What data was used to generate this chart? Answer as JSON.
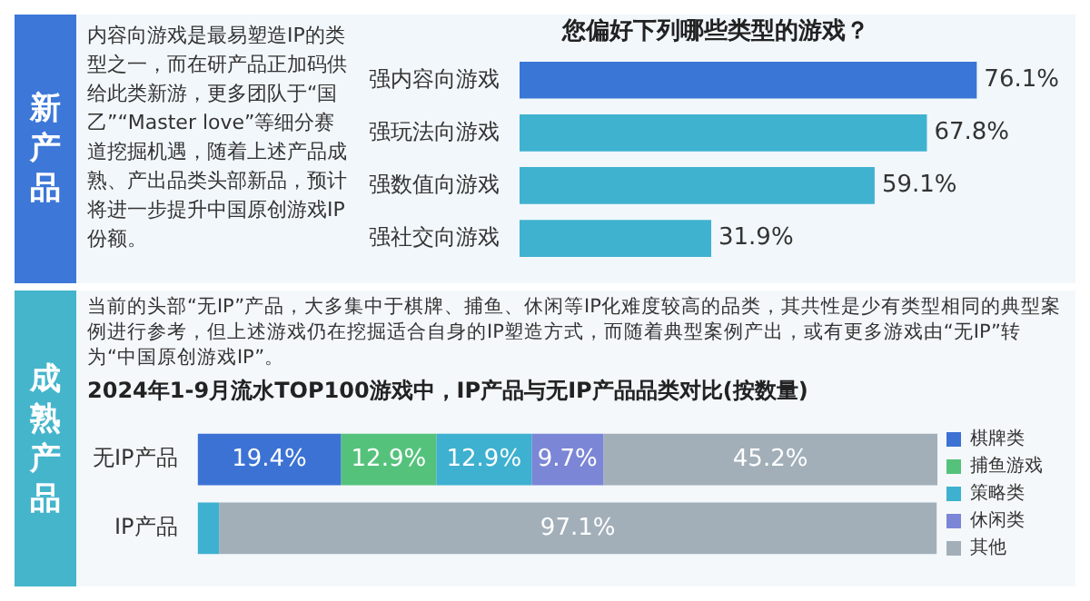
{
  "chart_data": [
    {
      "type": "bar",
      "orientation": "horizontal",
      "title": "您偏好下列哪些类型的游戏？",
      "categories": [
        "强内容向游戏",
        "强玩法向游戏",
        "强数值向游戏",
        "强社交向游戏"
      ],
      "values": [
        76.1,
        67.8,
        59.1,
        31.9
      ],
      "colors": [
        "#3a76d6",
        "#3fb2cf",
        "#3fb2cf",
        "#3fb2cf"
      ],
      "value_labels": [
        "76.1%",
        "67.8%",
        "59.1%",
        "31.9%"
      ],
      "tick_labels": "y",
      "annotations": [
        "新产品",
        "内容向游戏是最易塑造IP的类型之一，而在研产品正加码供给此类新游，更多团队于“国乙”“Master love”等细分赛道挖掘机遇，随着上述产品成熟、产出品类头部新品，预计将进一步提升中国原创游戏IP份额。"
      ]
    },
    {
      "type": "bar",
      "orientation": "horizontal",
      "stacked": true,
      "title": "2024年1-9月流水TOP100游戏中，IP产品与无IP产品品类对比(按数量)",
      "categories": [
        "无IP产品",
        "IP产品"
      ],
      "series": [
        {
          "name": "棋牌类",
          "color": "#3c72d4",
          "values": [
            19.4,
            null
          ],
          "value_labels": [
            "19.4%",
            null
          ]
        },
        {
          "name": "捕鱼游戏",
          "color": "#55c27c",
          "values": [
            12.9,
            null
          ],
          "value_labels": [
            "12.9%",
            null
          ]
        },
        {
          "name": "策略类",
          "color": "#3eb0d0",
          "values": [
            12.9,
            2.9
          ],
          "value_labels": [
            "12.9%",
            null
          ]
        },
        {
          "name": "休闲类",
          "color": "#7b86d6",
          "values": [
            9.7,
            null
          ],
          "value_labels": [
            "9.7%",
            null
          ]
        },
        {
          "name": "其他",
          "color": "#a2afb9",
          "values": [
            45.2,
            97.1
          ],
          "value_labels": [
            "45.2%",
            "97.1%"
          ]
        }
      ],
      "legend": "right",
      "tick_labels": "y",
      "annotations": [
        "成熟产品",
        "当前的头部“无IP”产品，大多集中于棋牌、捕鱼、休闲等IP化难度较高的品类，其共性是少有类型相同的典型案例进行参考，但上述游戏仍在挖掘适合自身的IP塑造方式，而随着典型案例产出，或有更多游戏由“无IP”转为“中国原创游戏IP”。"
      ]
    }
  ]
}
